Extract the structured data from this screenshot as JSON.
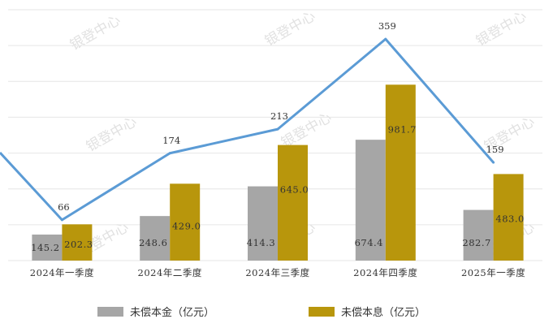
{
  "chart_data": {
    "type": "bar",
    "categories": [
      "2024年一季度",
      "2024年二季度",
      "2024年三季度",
      "2024年四季度",
      "2025年一季度"
    ],
    "series": [
      {
        "name": "未偿本金（亿元）",
        "values": [
          145.2,
          248.6,
          414.3,
          674.4,
          282.7
        ],
        "value_labels": [
          "145.2",
          "248.6",
          "414.3",
          "674.4",
          "282.7"
        ],
        "color": "#a6a6a6"
      },
      {
        "name": "未偿本息（亿元）",
        "values": [
          202.3,
          429.0,
          645.0,
          981.7,
          483.0
        ],
        "value_labels": [
          "202.3",
          "429.0",
          "645.0",
          "981.7",
          "483.0"
        ],
        "color": "#b8960c"
      }
    ],
    "line_series": {
      "values": [
        66,
        174,
        213,
        359,
        159
      ],
      "value_labels": [
        "66",
        "174",
        "213",
        "359",
        "159"
      ],
      "color": "#5b9bd5"
    },
    "ylim": [
      0,
      1400
    ],
    "line_ylim": [
      0,
      400
    ],
    "grid": true,
    "legend": "bottom",
    "watermark": "银登中心"
  }
}
